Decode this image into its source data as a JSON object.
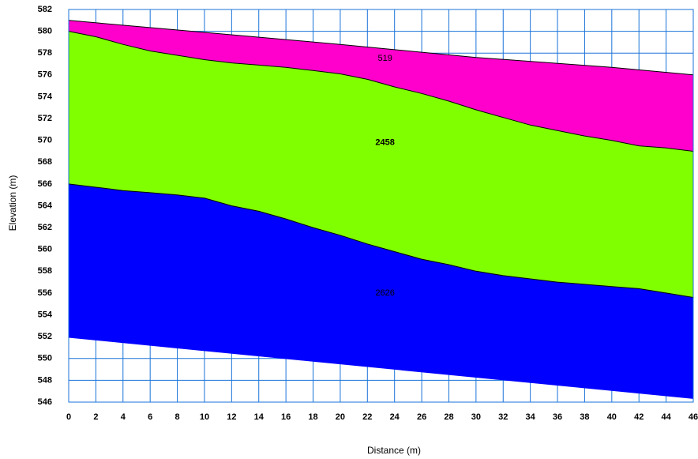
{
  "chart_data": {
    "type": "area",
    "title": "",
    "xlabel": "Distance (m)",
    "ylabel": "Elevation (m)",
    "xlim": [
      0,
      46
    ],
    "ylim": [
      546,
      582
    ],
    "x_ticks": [
      0,
      2,
      4,
      6,
      8,
      10,
      12,
      14,
      16,
      18,
      20,
      22,
      24,
      26,
      28,
      30,
      32,
      34,
      36,
      38,
      40,
      42,
      44,
      46
    ],
    "y_ticks": [
      546,
      548,
      550,
      552,
      554,
      556,
      558,
      560,
      562,
      564,
      566,
      568,
      570,
      572,
      574,
      576,
      578,
      580,
      582
    ],
    "grid": true,
    "layers": [
      {
        "label": "519",
        "label_bold": false,
        "label_at": [
          23.3,
          577.5
        ],
        "color": "#ff00cc",
        "top": [
          [
            0,
            581.0
          ],
          [
            10,
            579.9
          ],
          [
            20,
            578.8
          ],
          [
            30,
            577.6
          ],
          [
            40,
            576.7
          ],
          [
            46,
            576.0
          ]
        ],
        "bottom": [
          [
            0,
            580.0
          ],
          [
            2,
            579.5
          ],
          [
            4,
            578.8
          ],
          [
            6,
            578.2
          ],
          [
            8,
            577.8
          ],
          [
            10,
            577.4
          ],
          [
            12,
            577.1
          ],
          [
            14,
            576.9
          ],
          [
            16,
            576.7
          ],
          [
            18,
            576.4
          ],
          [
            20,
            576.1
          ],
          [
            22,
            575.6
          ],
          [
            24,
            574.9
          ],
          [
            26,
            574.3
          ],
          [
            28,
            573.6
          ],
          [
            30,
            572.8
          ],
          [
            32,
            572.1
          ],
          [
            34,
            571.4
          ],
          [
            36,
            570.9
          ],
          [
            38,
            570.4
          ],
          [
            40,
            570.0
          ],
          [
            42,
            569.5
          ],
          [
            44,
            569.3
          ],
          [
            46,
            569.0
          ]
        ]
      },
      {
        "label": "2458",
        "label_bold": true,
        "label_at": [
          23.3,
          569.8
        ],
        "color": "#80ff00",
        "top": [
          [
            0,
            580.0
          ],
          [
            2,
            579.5
          ],
          [
            4,
            578.8
          ],
          [
            6,
            578.2
          ],
          [
            8,
            577.8
          ],
          [
            10,
            577.4
          ],
          [
            12,
            577.1
          ],
          [
            14,
            576.9
          ],
          [
            16,
            576.7
          ],
          [
            18,
            576.4
          ],
          [
            20,
            576.1
          ],
          [
            22,
            575.6
          ],
          [
            24,
            574.9
          ],
          [
            26,
            574.3
          ],
          [
            28,
            573.6
          ],
          [
            30,
            572.8
          ],
          [
            32,
            572.1
          ],
          [
            34,
            571.4
          ],
          [
            36,
            570.9
          ],
          [
            38,
            570.4
          ],
          [
            40,
            570.0
          ],
          [
            42,
            569.5
          ],
          [
            44,
            569.3
          ],
          [
            46,
            569.0
          ]
        ],
        "bottom": [
          [
            0,
            566.0
          ],
          [
            2,
            565.7
          ],
          [
            4,
            565.4
          ],
          [
            6,
            565.2
          ],
          [
            8,
            565.0
          ],
          [
            10,
            564.7
          ],
          [
            12,
            564.0
          ],
          [
            14,
            563.5
          ],
          [
            16,
            562.8
          ],
          [
            18,
            562.0
          ],
          [
            20,
            561.3
          ],
          [
            22,
            560.5
          ],
          [
            24,
            559.8
          ],
          [
            26,
            559.1
          ],
          [
            28,
            558.6
          ],
          [
            30,
            558.0
          ],
          [
            32,
            557.6
          ],
          [
            34,
            557.3
          ],
          [
            36,
            557.0
          ],
          [
            38,
            556.8
          ],
          [
            40,
            556.6
          ],
          [
            42,
            556.4
          ],
          [
            44,
            556.0
          ],
          [
            46,
            555.6
          ]
        ]
      },
      {
        "label": "2626",
        "label_bold": false,
        "label_at": [
          23.3,
          556.0
        ],
        "color": "#0000ff",
        "top": [
          [
            0,
            566.0
          ],
          [
            2,
            565.7
          ],
          [
            4,
            565.4
          ],
          [
            6,
            565.2
          ],
          [
            8,
            565.0
          ],
          [
            10,
            564.7
          ],
          [
            12,
            564.0
          ],
          [
            14,
            563.5
          ],
          [
            16,
            562.8
          ],
          [
            18,
            562.0
          ],
          [
            20,
            561.3
          ],
          [
            22,
            560.5
          ],
          [
            24,
            559.8
          ],
          [
            26,
            559.1
          ],
          [
            28,
            558.6
          ],
          [
            30,
            558.0
          ],
          [
            32,
            557.6
          ],
          [
            34,
            557.3
          ],
          [
            36,
            557.0
          ],
          [
            38,
            556.8
          ],
          [
            40,
            556.6
          ],
          [
            42,
            556.4
          ],
          [
            44,
            556.0
          ],
          [
            46,
            555.6
          ]
        ],
        "bottom": [
          [
            0,
            551.9
          ],
          [
            46,
            546.3
          ]
        ]
      }
    ]
  }
}
